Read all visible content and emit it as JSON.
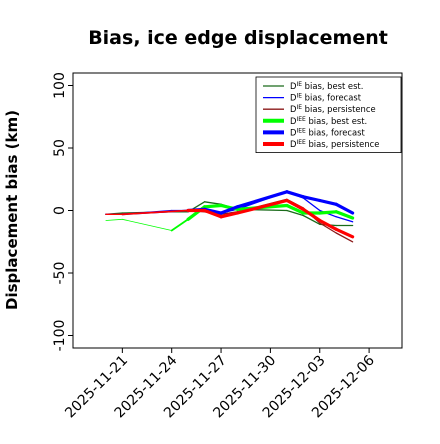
{
  "chart_data": {
    "type": "line",
    "title": "Bias, ice edge displacement",
    "xlabel": "",
    "ylabel": "Displacement bias (km)",
    "ylim": [
      -110,
      110
    ],
    "xlim": [
      "2025-11-18",
      "2025-12-08"
    ],
    "y_ticks": [
      -100,
      -50,
      0,
      50,
      100
    ],
    "x_ticks": [
      {
        "date": "2025-11-21",
        "label": "2025-11-21",
        "color": "#000000"
      },
      {
        "date": "2025-11-24",
        "label": "2025-11-24",
        "color": "#000000"
      },
      {
        "date": "2025-11-27",
        "label": "2025-11-27",
        "color": "#1f8a1f"
      },
      {
        "date": "2025-11-30",
        "label": "2025-11-30",
        "color": "#000000"
      },
      {
        "date": "2025-12-03",
        "label": "2025-12-03",
        "color": "#000000"
      },
      {
        "date": "2025-12-06",
        "label": "2025-12-06",
        "color": "#000000"
      }
    ],
    "grid": false,
    "legend_position": "top-right",
    "series": [
      {
        "name": "D^IE bias, best est.",
        "color": "#1a6b1a",
        "width": 1.3,
        "points": [
          [
            "2025-11-20",
            -3,
            0.8
          ],
          [
            "2025-11-21",
            -2,
            1.3
          ],
          [
            "2025-11-24",
            -1,
            1.3
          ],
          [
            "2025-11-25",
            -1,
            1.3
          ],
          [
            "2025-11-26",
            7,
            1.3
          ],
          [
            "2025-11-27",
            5,
            1.3
          ],
          [
            "2025-11-28",
            1,
            1.3
          ],
          [
            "2025-12-01",
            0,
            1.3
          ],
          [
            "2025-12-02",
            -4,
            1.3
          ],
          [
            "2025-12-03",
            -11,
            1.3
          ],
          [
            "2025-12-04",
            -12,
            1.3
          ],
          [
            "2025-12-05",
            -12,
            1.3
          ]
        ]
      },
      {
        "name": "D^IE bias, forecast",
        "color": "#0000ff",
        "width": 1.3,
        "points": [
          [
            "2025-11-20",
            -3,
            0.8
          ],
          [
            "2025-11-21",
            -3,
            1.3
          ],
          [
            "2025-11-24",
            0,
            1.3
          ],
          [
            "2025-11-26",
            0,
            1.3
          ],
          [
            "2025-11-27",
            -2,
            1.3
          ],
          [
            "2025-11-28",
            1,
            1.3
          ],
          [
            "2025-12-01",
            15,
            1.3
          ],
          [
            "2025-12-02",
            10,
            1.3
          ],
          [
            "2025-12-03",
            0,
            1.3
          ],
          [
            "2025-12-04",
            -5,
            1.3
          ],
          [
            "2025-12-05",
            -9,
            1.3
          ]
        ]
      },
      {
        "name": "D^IE bias, persistence",
        "color": "#8b1a1a",
        "width": 1.3,
        "points": [
          [
            "2025-11-20",
            -3,
            0.8
          ],
          [
            "2025-11-21",
            -3,
            1.3
          ],
          [
            "2025-11-25",
            0,
            1.3
          ],
          [
            "2025-11-26",
            -1,
            1.3
          ],
          [
            "2025-11-27",
            -3,
            1.3
          ],
          [
            "2025-11-28",
            -1,
            1.3
          ],
          [
            "2025-12-01",
            9,
            1.3
          ],
          [
            "2025-12-02",
            2,
            1.3
          ],
          [
            "2025-12-03",
            -10,
            1.3
          ],
          [
            "2025-12-04",
            -18,
            1.3
          ],
          [
            "2025-12-05",
            -25,
            1.3
          ]
        ]
      },
      {
        "name": "D^IEE bias, best est.",
        "color": "#00ff00",
        "width": 3.2,
        "points": [
          [
            "2025-11-20",
            -8,
            0.8
          ],
          [
            "2025-11-21",
            -7,
            0.8
          ],
          [
            "2025-11-24",
            -16,
            0.8
          ],
          [
            "2025-11-25",
            -7,
            1.8
          ],
          [
            "2025-11-26",
            3,
            3.2
          ],
          [
            "2025-11-27",
            4,
            3.2
          ],
          [
            "2025-11-28",
            1,
            3.2
          ],
          [
            "2025-12-01",
            4,
            3.2
          ],
          [
            "2025-12-02",
            -2,
            3.2
          ],
          [
            "2025-12-03",
            -2,
            3.2
          ],
          [
            "2025-12-04",
            -1,
            3.2
          ],
          [
            "2025-12-05",
            -6,
            3.2
          ]
        ]
      },
      {
        "name": "D^IEE bias, forecast",
        "color": "#0000ff",
        "width": 3.2,
        "points": [
          [
            "2025-11-20",
            -3,
            0.8
          ],
          [
            "2025-11-21",
            -3,
            1.3
          ],
          [
            "2025-11-25",
            0,
            1.8
          ],
          [
            "2025-11-26",
            1,
            3.2
          ],
          [
            "2025-11-27",
            -2,
            3.2
          ],
          [
            "2025-11-28",
            3,
            3.2
          ],
          [
            "2025-12-01",
            15,
            3.2
          ],
          [
            "2025-12-02",
            11,
            3.2
          ],
          [
            "2025-12-03",
            8,
            3.2
          ],
          [
            "2025-12-04",
            5,
            3.2
          ],
          [
            "2025-12-05",
            -2,
            3.2
          ]
        ]
      },
      {
        "name": "D^IEE bias, persistence",
        "color": "#ff0000",
        "width": 3.2,
        "points": [
          [
            "2025-11-20",
            -3,
            0.8
          ],
          [
            "2025-11-21",
            -3,
            1.3
          ],
          [
            "2025-11-25",
            0,
            1.8
          ],
          [
            "2025-11-26",
            0,
            3.2
          ],
          [
            "2025-11-27",
            -5,
            3.2
          ],
          [
            "2025-11-28",
            -2,
            3.2
          ],
          [
            "2025-12-01",
            8,
            3.2
          ],
          [
            "2025-12-02",
            1,
            3.2
          ],
          [
            "2025-12-03",
            -8,
            3.2
          ],
          [
            "2025-12-04",
            -15,
            3.2
          ],
          [
            "2025-12-05",
            -21,
            3.2
          ]
        ]
      }
    ],
    "legend": [
      {
        "base": "D",
        "sup": "IE",
        "rest": " bias, best est.",
        "color": "#1a6b1a",
        "width": 1.3
      },
      {
        "base": "D",
        "sup": "IE",
        "rest": " bias, forecast",
        "color": "#0000ff",
        "width": 1.3
      },
      {
        "base": "D",
        "sup": "IE",
        "rest": " bias, persistence",
        "color": "#8b1a1a",
        "width": 1.3
      },
      {
        "base": "D",
        "sup": "IEE",
        "rest": " bias, best est.",
        "color": "#00ff00",
        "width": 4
      },
      {
        "base": "D",
        "sup": "IEE",
        "rest": " bias, forecast",
        "color": "#0000ff",
        "width": 4
      },
      {
        "base": "D",
        "sup": "IEE",
        "rest": " bias, persistence",
        "color": "#ff0000",
        "width": 4
      }
    ]
  }
}
